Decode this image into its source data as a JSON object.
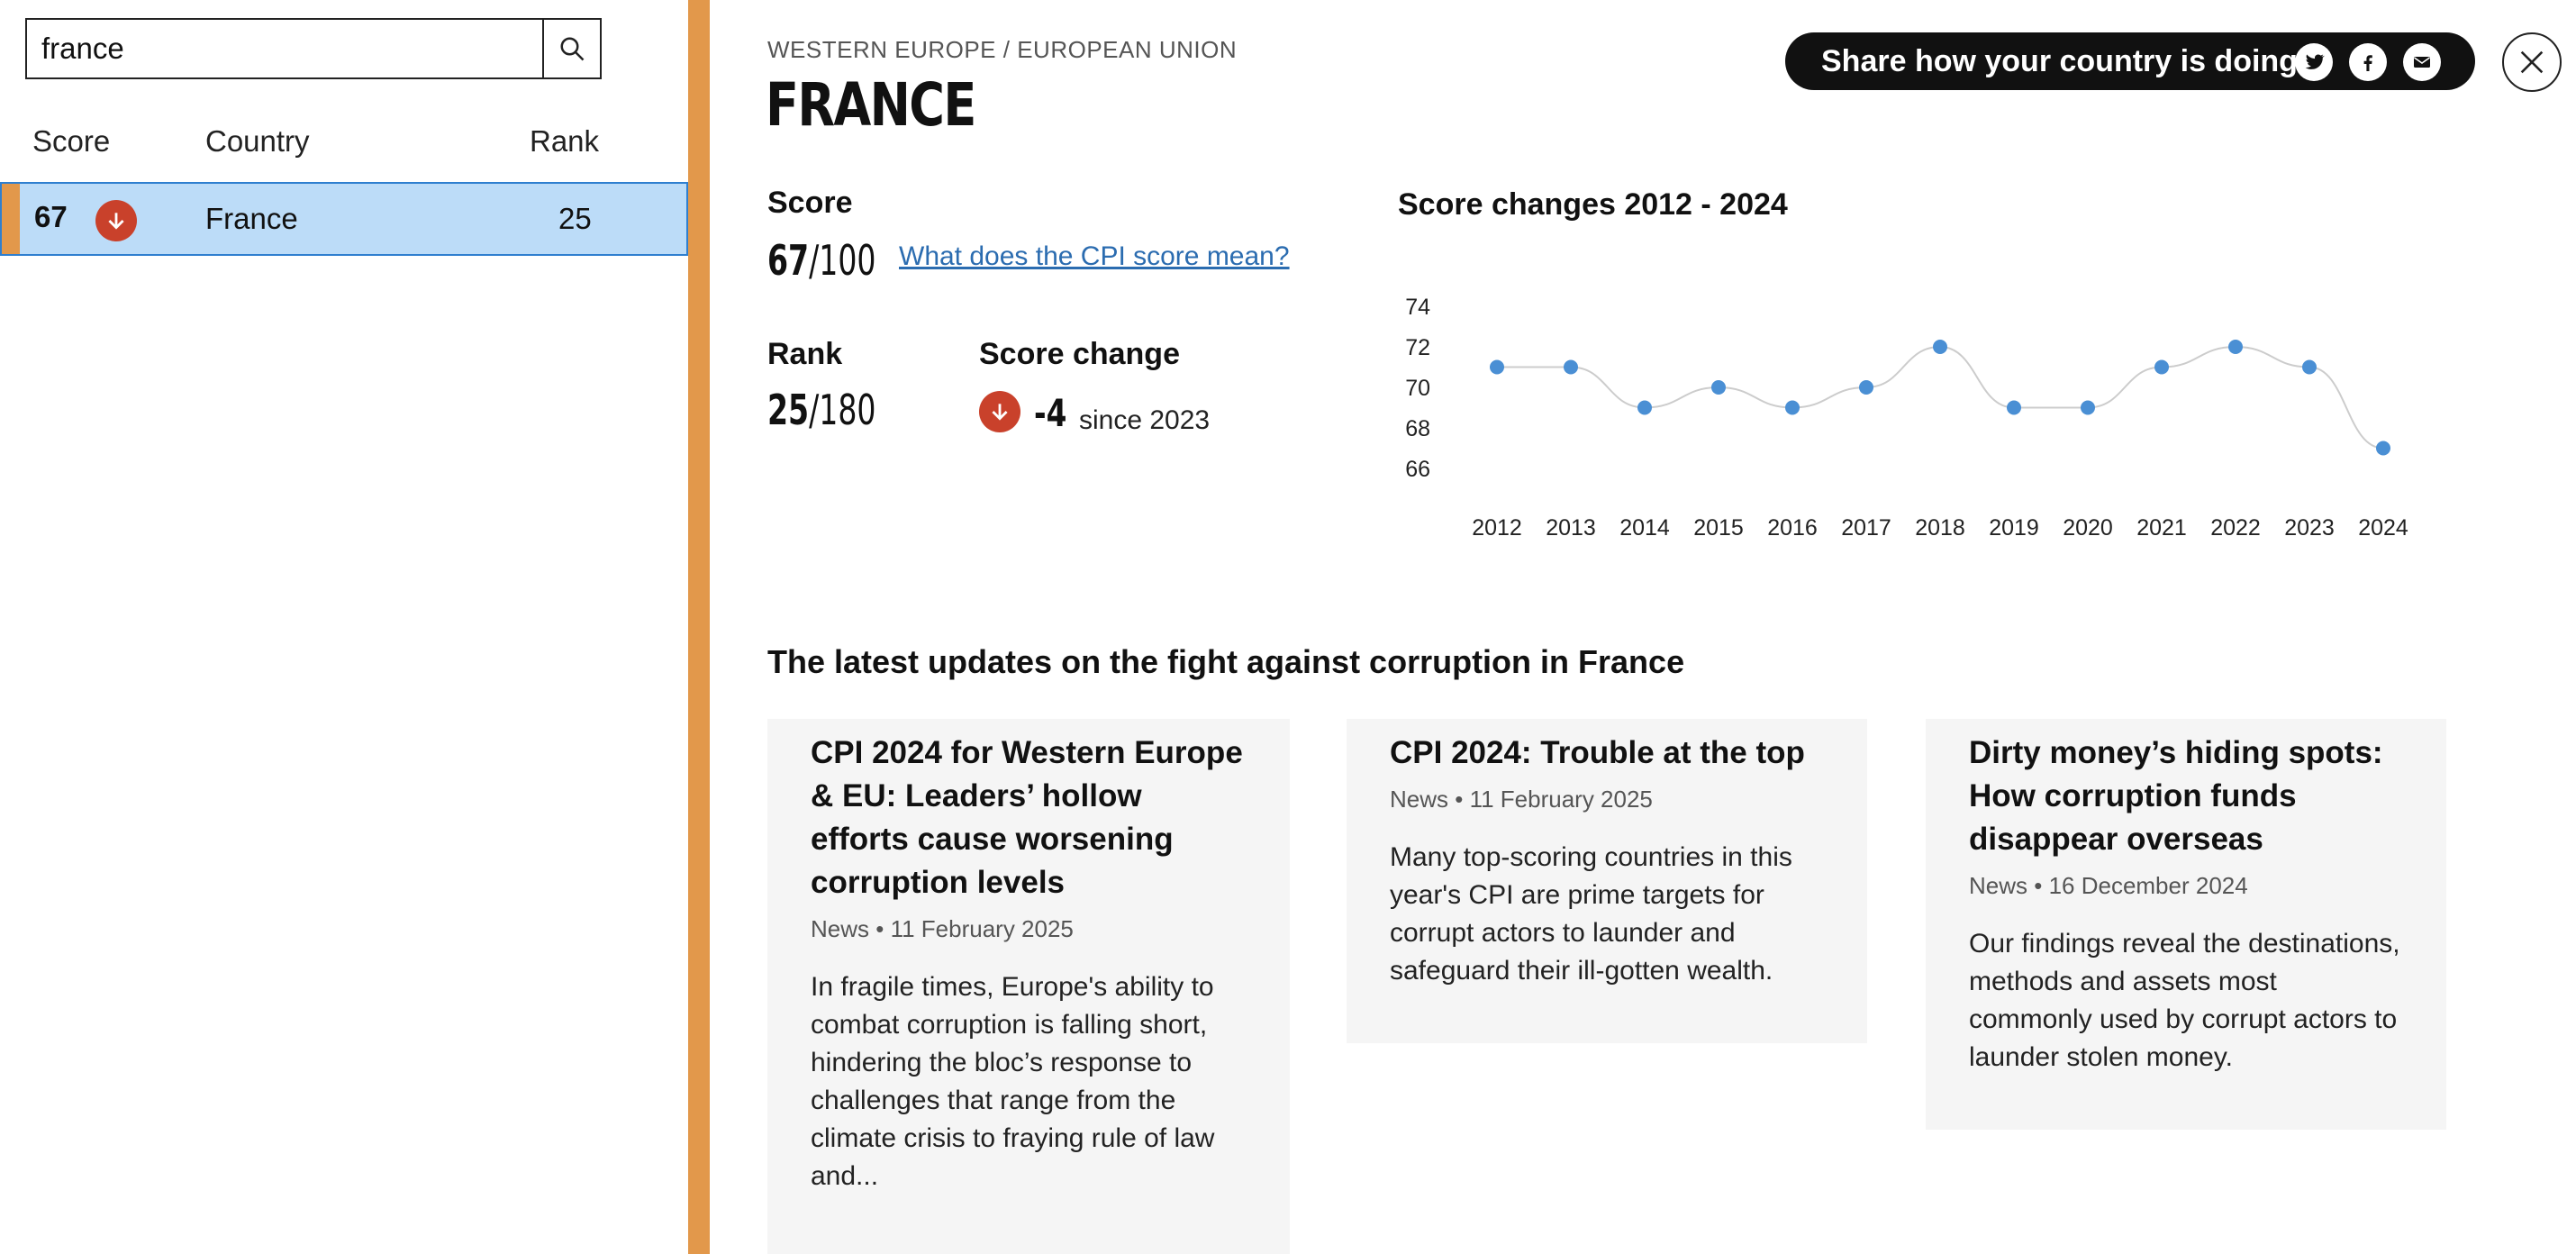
{
  "search": {
    "value": "france"
  },
  "table": {
    "headers": {
      "score": "Score",
      "country": "Country",
      "rank": "Rank"
    },
    "rows": [
      {
        "score": "67",
        "trend": "down",
        "country": "France",
        "rank": "25"
      }
    ]
  },
  "country": {
    "region": "WESTERN EUROPE / EUROPEAN UNION",
    "name": "FRANCE"
  },
  "share": {
    "text": "Share how your country is doing",
    "icons": [
      "twitter-icon",
      "facebook-icon",
      "email-icon"
    ]
  },
  "score": {
    "label": "Score",
    "value": "67",
    "total": "/100",
    "link": "What does the CPI score mean?"
  },
  "rank": {
    "label": "Rank",
    "value": "25",
    "total": "/180"
  },
  "score_change": {
    "label": "Score change",
    "value": "-4",
    "since": "since 2023"
  },
  "chart_title": "Score changes 2012 - 2024",
  "chart_data": {
    "type": "line",
    "x": [
      "2012",
      "2013",
      "2014",
      "2015",
      "2016",
      "2017",
      "2018",
      "2019",
      "2020",
      "2021",
      "2022",
      "2023",
      "2024"
    ],
    "values": [
      71,
      71,
      69,
      70,
      69,
      70,
      72,
      69,
      69,
      71,
      72,
      71,
      67
    ],
    "yticks": [
      "74",
      "72",
      "70",
      "68",
      "66"
    ],
    "ylim": [
      66,
      74
    ],
    "point_color": "#4a8fd4",
    "line_color": "#cccccc"
  },
  "updates_title": "The latest updates on the fight against corruption in France",
  "cards": [
    {
      "title": "CPI 2024 for Western Europe & EU: Leaders’ hollow efforts cause worsening corruption levels",
      "meta": "News • 11 February 2025",
      "text": "In fragile times, Europe's ability to combat corruption is falling short, hindering the bloc’s response to challenges that range from the climate crisis to fraying rule of law and..."
    },
    {
      "title": "CPI 2024: Trouble at the top",
      "meta": "News • 11 February 2025",
      "text": "Many top-scoring countries in this year's CPI are prime targets for corrupt actors to launder and safeguard their ill-gotten wealth."
    },
    {
      "title": "Dirty money’s hiding spots: How corruption funds disappear overseas",
      "meta": "News • 16 December 2024",
      "text": "Our findings reveal the destinations, methods and assets most commonly used by corrupt actors to launder stolen money."
    }
  ],
  "colors": {
    "accent": "#e2984b",
    "down": "#c9412b",
    "row_selected": "#bcdcf8",
    "link": "#2b6cb0"
  }
}
